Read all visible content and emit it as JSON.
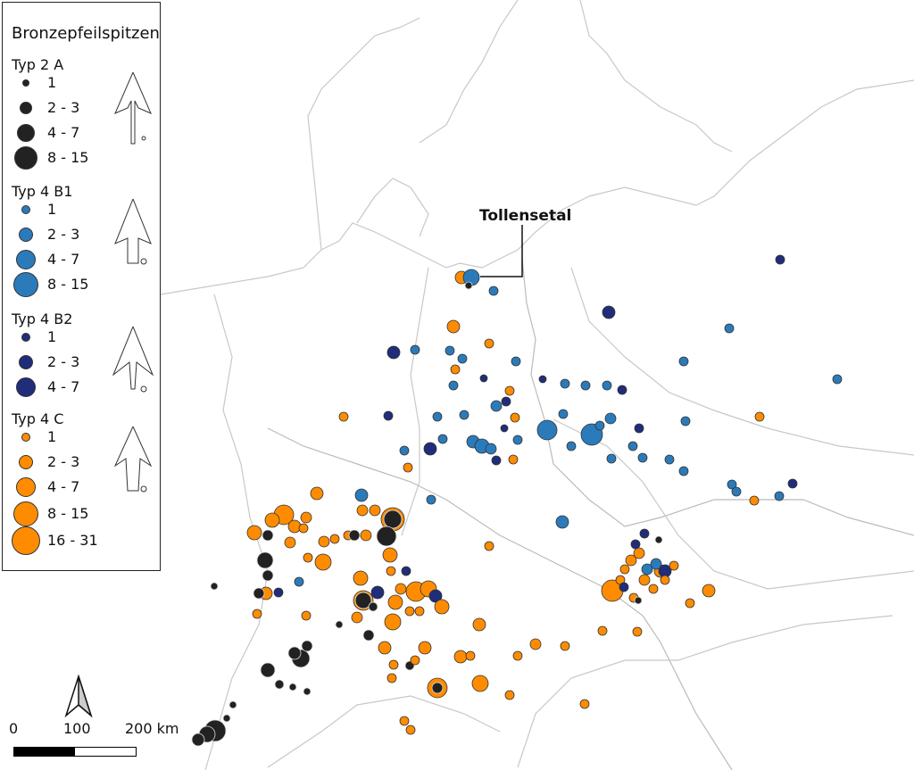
{
  "legend": {
    "title": "Bronzepfeilspitzen",
    "groups": [
      {
        "name": "Typ 2 A",
        "color": "#222222",
        "classes": [
          "1",
          "2 - 3",
          "4 - 7",
          "8 - 15"
        ]
      },
      {
        "name": "Typ 4 B1",
        "color": "#2b7bba",
        "classes": [
          "1",
          "2 - 3",
          "4 - 7",
          "8 - 15"
        ]
      },
      {
        "name": "Typ 4 B2",
        "color": "#1f2d7a",
        "classes": [
          "1",
          "2 - 3",
          "4 - 7"
        ]
      },
      {
        "name": "Typ 4 C",
        "color": "#ff8c00",
        "classes": [
          "1",
          "2 - 3",
          "4 - 7",
          "8 - 15",
          "16 - 31"
        ]
      }
    ]
  },
  "map": {
    "highlight_label": "Tollensetal"
  },
  "scale": {
    "labels": [
      "0",
      "100",
      "200 km"
    ]
  },
  "north_arrow": "north-arrow-icon"
}
